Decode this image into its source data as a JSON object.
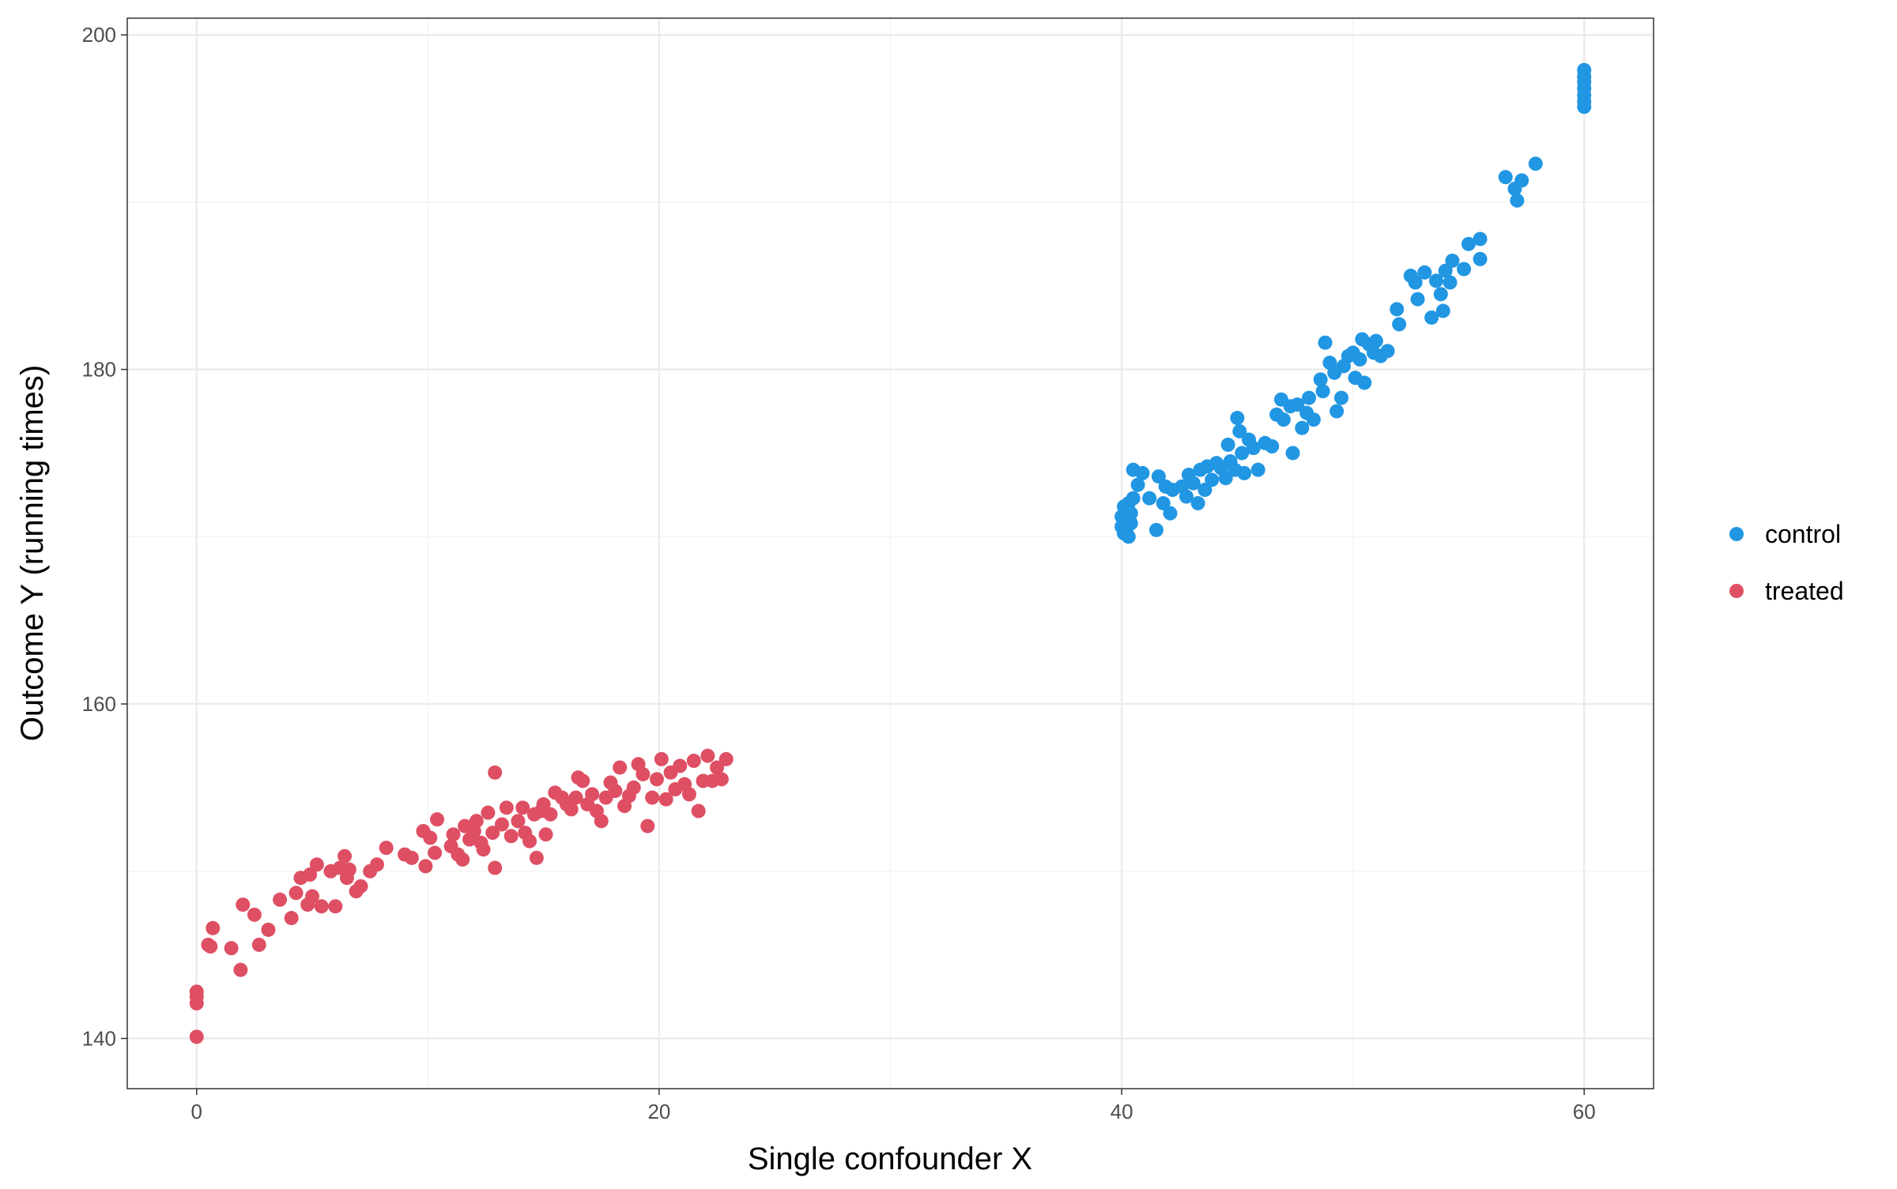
{
  "chart_data": {
    "type": "scatter",
    "title": "",
    "xlabel": "Single confounder X",
    "ylabel": "Outcome Y (running times)",
    "xlim": [
      -3,
      63
    ],
    "ylim": [
      137,
      201
    ],
    "x_ticks": [
      0,
      20,
      40,
      60
    ],
    "y_ticks": [
      140,
      160,
      180,
      200
    ],
    "x_tick_labels": [
      "0",
      "20",
      "40",
      "60"
    ],
    "y_tick_labels": [
      "140",
      "160",
      "180",
      "200"
    ],
    "grid": true,
    "legend_position": "right",
    "colors": {
      "control": "#2196e3",
      "treated": "#de4f64",
      "grid_major": "#ebebeb",
      "grid_minor": "#f2f2f2",
      "panel_border": "#333333"
    },
    "legend": [
      {
        "key": "control",
        "label": "control"
      },
      {
        "key": "treated",
        "label": "treated"
      }
    ],
    "series": [
      {
        "name": "control",
        "points": [
          [
            40.0,
            171.2
          ],
          [
            40.0,
            170.6
          ],
          [
            40.1,
            171.8
          ],
          [
            40.1,
            170.2
          ],
          [
            40.2,
            171.0
          ],
          [
            40.2,
            170.4
          ],
          [
            40.3,
            172.0
          ],
          [
            40.3,
            170.0
          ],
          [
            40.4,
            171.4
          ],
          [
            40.4,
            170.8
          ],
          [
            40.5,
            172.3
          ],
          [
            40.5,
            174.0
          ],
          [
            40.7,
            173.1
          ],
          [
            40.9,
            173.8
          ],
          [
            41.2,
            172.3
          ],
          [
            41.5,
            170.4
          ],
          [
            41.6,
            173.6
          ],
          [
            41.8,
            172.0
          ],
          [
            41.9,
            173.0
          ],
          [
            42.1,
            171.4
          ],
          [
            42.2,
            172.8
          ],
          [
            42.6,
            173.0
          ],
          [
            42.8,
            172.4
          ],
          [
            42.9,
            173.7
          ],
          [
            43.1,
            173.2
          ],
          [
            43.3,
            172.0
          ],
          [
            43.4,
            174.0
          ],
          [
            43.6,
            172.8
          ],
          [
            43.7,
            174.2
          ],
          [
            43.9,
            173.4
          ],
          [
            44.1,
            174.4
          ],
          [
            44.3,
            174.1
          ],
          [
            44.5,
            173.5
          ],
          [
            44.6,
            175.5
          ],
          [
            44.7,
            174.5
          ],
          [
            44.9,
            174.0
          ],
          [
            45.0,
            177.1
          ],
          [
            45.1,
            176.3
          ],
          [
            45.2,
            175.0
          ],
          [
            45.3,
            173.8
          ],
          [
            45.5,
            175.8
          ],
          [
            45.7,
            175.3
          ],
          [
            45.9,
            174.0
          ],
          [
            46.2,
            175.6
          ],
          [
            46.5,
            175.4
          ],
          [
            46.7,
            177.3
          ],
          [
            46.9,
            178.2
          ],
          [
            47.0,
            177.0
          ],
          [
            47.3,
            177.8
          ],
          [
            47.4,
            175.0
          ],
          [
            47.6,
            177.9
          ],
          [
            47.8,
            176.5
          ],
          [
            48.0,
            177.4
          ],
          [
            48.1,
            178.3
          ],
          [
            48.3,
            177.0
          ],
          [
            48.6,
            179.4
          ],
          [
            48.7,
            178.7
          ],
          [
            48.8,
            181.6
          ],
          [
            49.0,
            180.4
          ],
          [
            49.2,
            179.8
          ],
          [
            49.3,
            177.5
          ],
          [
            49.5,
            178.3
          ],
          [
            49.6,
            180.2
          ],
          [
            49.8,
            180.8
          ],
          [
            50.0,
            181.0
          ],
          [
            50.1,
            179.5
          ],
          [
            50.3,
            180.6
          ],
          [
            50.4,
            181.8
          ],
          [
            50.5,
            179.2
          ],
          [
            50.7,
            181.5
          ],
          [
            50.9,
            181.0
          ],
          [
            51.0,
            181.7
          ],
          [
            51.2,
            180.8
          ],
          [
            51.5,
            181.1
          ],
          [
            51.9,
            183.6
          ],
          [
            52.0,
            182.7
          ],
          [
            52.5,
            185.6
          ],
          [
            52.7,
            185.2
          ],
          [
            52.8,
            184.2
          ],
          [
            53.1,
            185.8
          ],
          [
            53.4,
            183.1
          ],
          [
            53.6,
            185.3
          ],
          [
            53.8,
            184.5
          ],
          [
            53.9,
            183.5
          ],
          [
            54.0,
            185.9
          ],
          [
            54.2,
            185.2
          ],
          [
            54.3,
            186.5
          ],
          [
            54.8,
            186.0
          ],
          [
            55.0,
            187.5
          ],
          [
            55.5,
            186.6
          ],
          [
            55.5,
            187.8
          ],
          [
            56.6,
            191.5
          ],
          [
            57.0,
            190.8
          ],
          [
            57.1,
            190.1
          ],
          [
            57.3,
            191.3
          ],
          [
            57.9,
            192.3
          ],
          [
            60.0,
            195.7
          ],
          [
            60.0,
            196.0
          ],
          [
            60.0,
            196.4
          ],
          [
            60.0,
            196.8
          ],
          [
            60.0,
            197.2
          ],
          [
            60.0,
            197.5
          ],
          [
            60.0,
            197.9
          ]
        ]
      },
      {
        "name": "treated",
        "points": [
          [
            0.0,
            140.1
          ],
          [
            0.0,
            142.1
          ],
          [
            0.0,
            142.5
          ],
          [
            0.0,
            142.8
          ],
          [
            0.5,
            145.6
          ],
          [
            0.6,
            145.5
          ],
          [
            0.7,
            146.6
          ],
          [
            1.5,
            145.4
          ],
          [
            1.9,
            144.1
          ],
          [
            2.0,
            148.0
          ],
          [
            2.5,
            147.4
          ],
          [
            2.7,
            145.6
          ],
          [
            3.1,
            146.5
          ],
          [
            3.6,
            148.3
          ],
          [
            4.1,
            147.2
          ],
          [
            4.3,
            148.7
          ],
          [
            4.5,
            149.6
          ],
          [
            4.8,
            148.0
          ],
          [
            4.9,
            149.8
          ],
          [
            5.0,
            148.5
          ],
          [
            5.2,
            150.4
          ],
          [
            5.4,
            147.9
          ],
          [
            5.8,
            150.0
          ],
          [
            6.0,
            147.9
          ],
          [
            6.2,
            150.2
          ],
          [
            6.4,
            150.9
          ],
          [
            6.5,
            149.6
          ],
          [
            6.6,
            150.1
          ],
          [
            6.9,
            148.8
          ],
          [
            7.1,
            149.1
          ],
          [
            7.5,
            150.0
          ],
          [
            7.8,
            150.4
          ],
          [
            8.2,
            151.4
          ],
          [
            9.0,
            151.0
          ],
          [
            9.3,
            150.8
          ],
          [
            9.8,
            152.4
          ],
          [
            9.9,
            150.3
          ],
          [
            10.1,
            152.0
          ],
          [
            10.3,
            151.1
          ],
          [
            10.4,
            153.1
          ],
          [
            11.0,
            151.5
          ],
          [
            11.1,
            152.2
          ],
          [
            11.3,
            151.0
          ],
          [
            11.5,
            150.7
          ],
          [
            11.6,
            152.7
          ],
          [
            11.8,
            151.9
          ],
          [
            12.0,
            152.4
          ],
          [
            12.1,
            153.0
          ],
          [
            12.3,
            151.7
          ],
          [
            12.4,
            151.3
          ],
          [
            12.6,
            153.5
          ],
          [
            12.8,
            152.3
          ],
          [
            12.9,
            150.2
          ],
          [
            12.9,
            155.9
          ],
          [
            13.2,
            152.8
          ],
          [
            13.4,
            153.8
          ],
          [
            13.6,
            152.1
          ],
          [
            13.9,
            153.0
          ],
          [
            14.1,
            153.8
          ],
          [
            14.2,
            152.3
          ],
          [
            14.4,
            151.8
          ],
          [
            14.6,
            153.4
          ],
          [
            14.7,
            150.8
          ],
          [
            14.9,
            153.6
          ],
          [
            15.0,
            154.0
          ],
          [
            15.1,
            152.2
          ],
          [
            15.3,
            153.4
          ],
          [
            15.5,
            154.7
          ],
          [
            15.8,
            154.4
          ],
          [
            16.0,
            154.0
          ],
          [
            16.2,
            153.7
          ],
          [
            16.4,
            154.4
          ],
          [
            16.5,
            155.6
          ],
          [
            16.7,
            155.4
          ],
          [
            16.9,
            154.0
          ],
          [
            17.1,
            154.6
          ],
          [
            17.3,
            153.6
          ],
          [
            17.5,
            153.0
          ],
          [
            17.7,
            154.4
          ],
          [
            17.9,
            155.3
          ],
          [
            18.1,
            154.8
          ],
          [
            18.3,
            156.2
          ],
          [
            18.5,
            153.9
          ],
          [
            18.7,
            154.5
          ],
          [
            18.9,
            155.0
          ],
          [
            19.1,
            156.4
          ],
          [
            19.3,
            155.8
          ],
          [
            19.5,
            152.7
          ],
          [
            19.7,
            154.4
          ],
          [
            19.9,
            155.5
          ],
          [
            20.1,
            156.7
          ],
          [
            20.3,
            154.3
          ],
          [
            20.5,
            155.9
          ],
          [
            20.7,
            154.9
          ],
          [
            20.9,
            156.3
          ],
          [
            21.1,
            155.2
          ],
          [
            21.3,
            154.6
          ],
          [
            21.5,
            156.6
          ],
          [
            21.7,
            153.6
          ],
          [
            21.9,
            155.4
          ],
          [
            22.1,
            156.9
          ],
          [
            22.3,
            155.4
          ],
          [
            22.5,
            156.2
          ],
          [
            22.7,
            155.5
          ],
          [
            22.9,
            156.7
          ]
        ]
      }
    ]
  }
}
